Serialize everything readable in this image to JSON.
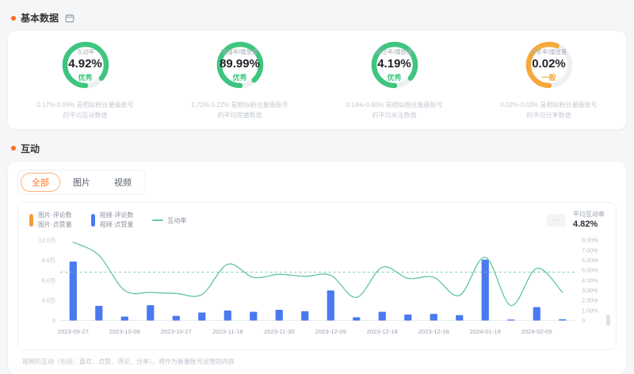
{
  "colors": {
    "accent_orange": "#ff6a1f",
    "tab_active": "#ff7a2e",
    "green": "#3ec57f",
    "amber": "#f5a93b",
    "bar_blue": "#4a79f0",
    "line_green": "#63c6a0",
    "legend_orange": "#f59a3e",
    "track_gray": "#eef0f3"
  },
  "sections": {
    "basic": {
      "title": "基本数据"
    },
    "interaction": {
      "title": "互动"
    }
  },
  "gauges": [
    {
      "label": "互动率",
      "value": "4.92%",
      "status": "优秀",
      "level": "green",
      "arc": 0.86,
      "desc1": "0.17%-0.69% 是相似粉丝量级账号",
      "desc2": "的平均互动数值"
    },
    {
      "label": "完播率/播放量",
      "value": "89.99%",
      "status": "优秀",
      "level": "green",
      "arc": 0.88,
      "desc1": "1.72%-5.22% 是相似粉丝量级账号",
      "desc2": "的平均完播数值"
    },
    {
      "label": "关注率/播放量",
      "value": "4.19%",
      "status": "优秀",
      "level": "green",
      "arc": 0.86,
      "desc1": "0.14%-0.65% 是相似粉丝量级账号",
      "desc2": "的平均关注数值"
    },
    {
      "label": "分享率/播放量",
      "value": "0.02%",
      "status": "一般",
      "level": "amber",
      "arc": 0.56,
      "desc1": "0.02%-0.03% 是相似粉丝量级账号",
      "desc2": "的平均分享数值"
    }
  ],
  "tabs": {
    "all": "全部",
    "image": "图片",
    "video": "视频"
  },
  "legend": {
    "image": {
      "color": "#f59a3e",
      "line1": "图片·评论数",
      "line2": "图片·点赞量"
    },
    "video": {
      "color": "#4a79f0",
      "line1": "视频·评论数",
      "line2": "视频·点赞量"
    },
    "rate": {
      "color": "#63c6a0",
      "label": "互动率"
    }
  },
  "summary": {
    "more_label": "···",
    "label": "平均互动率",
    "value": "4.82%"
  },
  "chart_data": {
    "type": "bar+line",
    "x_labels": [
      "2023-09-27",
      "2023-10-06",
      "2023-10-27",
      "2023-11-18",
      "2023-11-30",
      "2023-12-09",
      "2023-12-18",
      "2023-12-28",
      "2024-01-19",
      "2024-02-05"
    ],
    "x_label_every": 2,
    "bar_series": [
      {
        "name": "视频·点赞量/评论数",
        "color": "#4a79f0",
        "unit": "万",
        "values": [
          8.8,
          2.2,
          0.6,
          2.3,
          0.7,
          1.2,
          1.5,
          1.3,
          1.6,
          1.4,
          4.5,
          0.5,
          1.3,
          0.9,
          1.0,
          0.8,
          9.1,
          0.15,
          2.0,
          0.2
        ]
      }
    ],
    "line_series": {
      "name": "互动率",
      "color": "#63c6a0",
      "unit": "%",
      "values": [
        7.8,
        6.5,
        3.0,
        2.8,
        2.7,
        2.6,
        5.6,
        4.3,
        4.6,
        4.4,
        4.5,
        2.3,
        5.3,
        4.2,
        4.3,
        2.5,
        6.3,
        1.5,
        5.2,
        2.8
      ]
    },
    "average_line": {
      "label": "平均互动率",
      "value": 4.82
    },
    "left_axis": {
      "max": 12,
      "ticks": [
        "12.0万",
        "9.0万",
        "6.0万",
        "3.0万",
        "0"
      ]
    },
    "right_axis": {
      "max": 8,
      "ticks": [
        "8.00%",
        "7.00%",
        "6.00%",
        "5.00%",
        "4.00%",
        "3.00%",
        "2.00%",
        "1.00%",
        "0"
      ]
    },
    "grid": false,
    "legend_position": "top-left"
  },
  "footnote": "视频的互动（包括：喜欢、点赞、评论、分享），将作为衡量账号运营的内容"
}
